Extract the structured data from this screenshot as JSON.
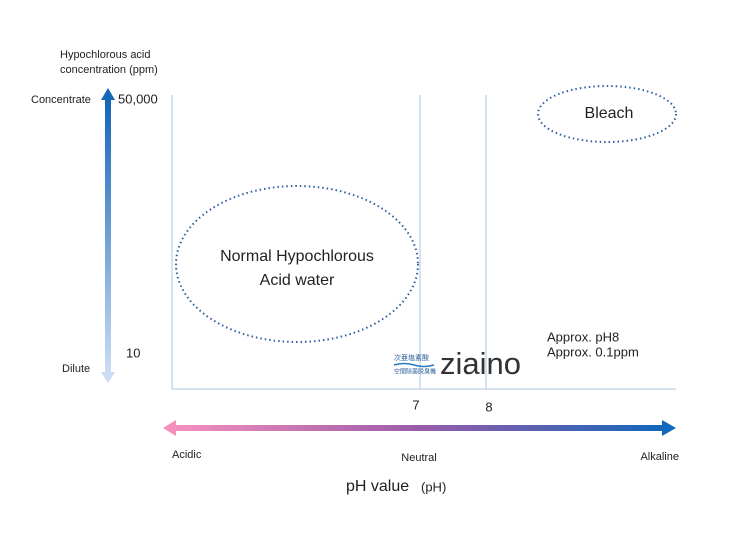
{
  "y_axis": {
    "title_lines": [
      "Hypochlorous acid",
      "concentration (ppm)"
    ],
    "top_label": "Concentrate",
    "top_value": "50,000",
    "bottom_label": "Dilute",
    "bottom_value": "10"
  },
  "regions": {
    "normal": {
      "lines": [
        "Normal Hypochlorous",
        "Acid water"
      ]
    },
    "bleach": {
      "label": "Bleach"
    }
  },
  "note_lines": [
    "Approx. pH8",
    "Approx. 0.1ppm"
  ],
  "logo": {
    "small_lines": [
      "次亜塩素酸",
      "空間除菌脱臭機"
    ],
    "name": "ziaino"
  },
  "x_axis": {
    "ticks": [
      "7",
      "8"
    ],
    "left_label": "Acidic",
    "middle_label": "Neutral",
    "right_label": "Alkaline",
    "title": "pH value",
    "unit": "(pH)"
  }
}
